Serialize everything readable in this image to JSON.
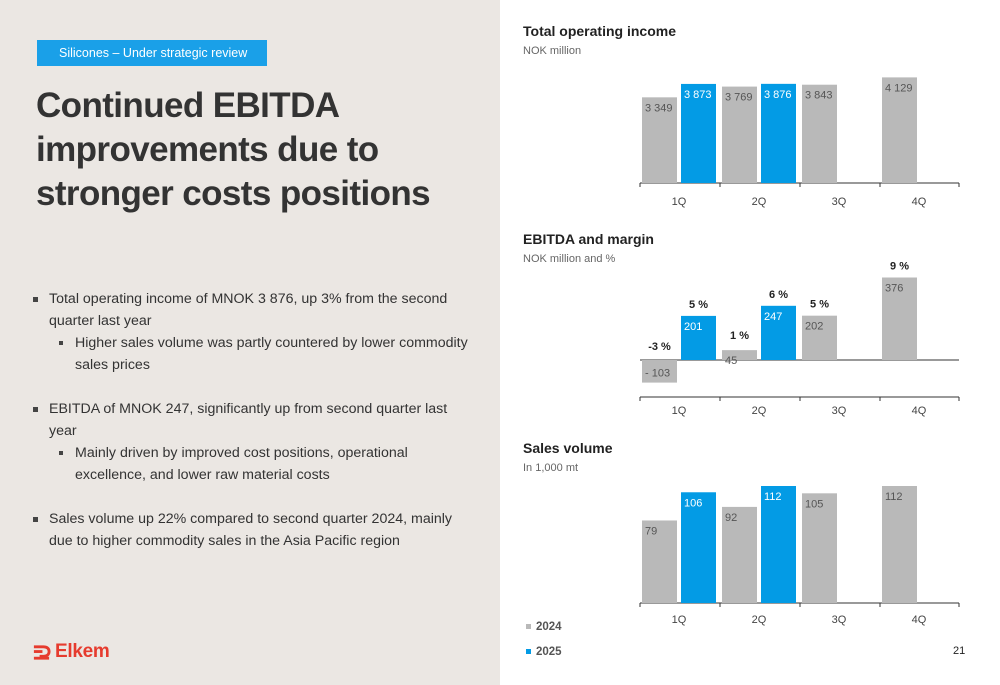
{
  "slide": {
    "tag": "Silicones – Under strategic review",
    "headline": "Continued EBITDA improvements due to stronger costs positions",
    "bullets": [
      {
        "text": "Total operating income of MNOK 3 876, up 3% from the second quarter last year",
        "sub": [
          "Higher sales volume was partly countered by lower commodity sales prices"
        ]
      },
      {
        "text": "EBITDA of MNOK 247, significantly up from second quarter last year",
        "sub": [
          "Mainly driven by improved cost positions, operational excellence, and lower raw material costs"
        ]
      },
      {
        "text": "Sales volume up 22% compared to second quarter 2024, mainly due to higher commodity sales in the Asia Pacific region",
        "sub": []
      }
    ],
    "logo": "Elkem",
    "page_number": "21"
  },
  "colors": {
    "2024": "#b9b9b9",
    "2025": "#039be5",
    "brand": "#e63b2e",
    "tag_bg": "#1aa0e8",
    "panel_bg": "#ebe7e3"
  },
  "legend": [
    {
      "label": "2024",
      "color": "#b9b9b9"
    },
    {
      "label": "2025",
      "color": "#039be5"
    }
  ],
  "chart_data": [
    {
      "type": "bar",
      "title": "Total operating income",
      "subtitle": "NOK million",
      "categories": [
        "1Q",
        "2Q",
        "3Q",
        "4Q"
      ],
      "series": [
        {
          "name": "2024",
          "values": [
            3349,
            3769,
            3843,
            4129
          ],
          "labels": [
            "3 349",
            "3 769",
            "3 843",
            "4 129"
          ]
        },
        {
          "name": "2025",
          "values": [
            3873,
            3876,
            null,
            null
          ],
          "labels": [
            "3 873",
            "3 876",
            "",
            ""
          ]
        }
      ],
      "ylim": [
        0,
        4200
      ]
    },
    {
      "type": "bar",
      "title": "EBITDA and margin",
      "subtitle": "NOK million and %",
      "categories": [
        "1Q",
        "2Q",
        "3Q",
        "4Q"
      ],
      "series": [
        {
          "name": "2024",
          "values": [
            -103,
            45,
            202,
            376
          ],
          "labels": [
            "- 103",
            "45",
            "202",
            "376"
          ],
          "margins": [
            "-3 %",
            "1 %",
            "5 %",
            "9 %"
          ]
        },
        {
          "name": "2025",
          "values": [
            201,
            247,
            null,
            null
          ],
          "labels": [
            "201",
            "247",
            "",
            ""
          ],
          "margins": [
            "5 %",
            "6 %",
            "",
            ""
          ]
        }
      ],
      "ylim": [
        -103,
        376
      ]
    },
    {
      "type": "bar",
      "title": "Sales volume",
      "subtitle": "In 1,000 mt",
      "categories": [
        "1Q",
        "2Q",
        "3Q",
        "4Q"
      ],
      "series": [
        {
          "name": "2024",
          "values": [
            79,
            92,
            105,
            112
          ],
          "labels": [
            "79",
            "92",
            "105",
            "112"
          ]
        },
        {
          "name": "2025",
          "values": [
            106,
            112,
            null,
            null
          ],
          "labels": [
            "106",
            "112",
            "",
            ""
          ]
        }
      ],
      "ylim": [
        0,
        120
      ]
    }
  ]
}
